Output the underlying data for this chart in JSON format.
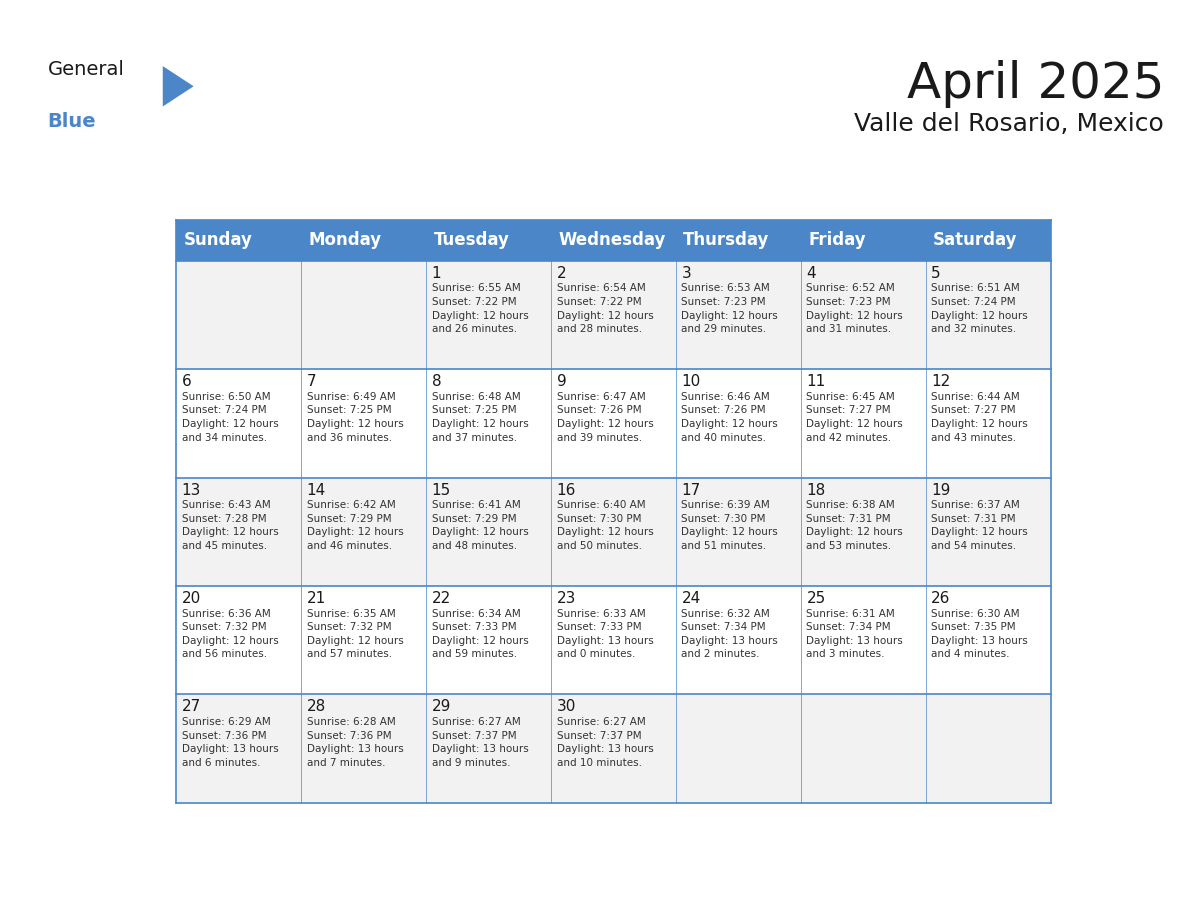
{
  "title": "April 2025",
  "subtitle": "Valle del Rosario, Mexico",
  "header_bg": "#4A86C8",
  "header_text": "#FFFFFF",
  "row_bg_odd": "#F2F2F2",
  "row_bg_even": "#FFFFFF",
  "border_color": "#4A86C8",
  "day_headers": [
    "Sunday",
    "Monday",
    "Tuesday",
    "Wednesday",
    "Thursday",
    "Friday",
    "Saturday"
  ],
  "weeks": [
    [
      {
        "day": "",
        "info": ""
      },
      {
        "day": "",
        "info": ""
      },
      {
        "day": "1",
        "info": "Sunrise: 6:55 AM\nSunset: 7:22 PM\nDaylight: 12 hours\nand 26 minutes."
      },
      {
        "day": "2",
        "info": "Sunrise: 6:54 AM\nSunset: 7:22 PM\nDaylight: 12 hours\nand 28 minutes."
      },
      {
        "day": "3",
        "info": "Sunrise: 6:53 AM\nSunset: 7:23 PM\nDaylight: 12 hours\nand 29 minutes."
      },
      {
        "day": "4",
        "info": "Sunrise: 6:52 AM\nSunset: 7:23 PM\nDaylight: 12 hours\nand 31 minutes."
      },
      {
        "day": "5",
        "info": "Sunrise: 6:51 AM\nSunset: 7:24 PM\nDaylight: 12 hours\nand 32 minutes."
      }
    ],
    [
      {
        "day": "6",
        "info": "Sunrise: 6:50 AM\nSunset: 7:24 PM\nDaylight: 12 hours\nand 34 minutes."
      },
      {
        "day": "7",
        "info": "Sunrise: 6:49 AM\nSunset: 7:25 PM\nDaylight: 12 hours\nand 36 minutes."
      },
      {
        "day": "8",
        "info": "Sunrise: 6:48 AM\nSunset: 7:25 PM\nDaylight: 12 hours\nand 37 minutes."
      },
      {
        "day": "9",
        "info": "Sunrise: 6:47 AM\nSunset: 7:26 PM\nDaylight: 12 hours\nand 39 minutes."
      },
      {
        "day": "10",
        "info": "Sunrise: 6:46 AM\nSunset: 7:26 PM\nDaylight: 12 hours\nand 40 minutes."
      },
      {
        "day": "11",
        "info": "Sunrise: 6:45 AM\nSunset: 7:27 PM\nDaylight: 12 hours\nand 42 minutes."
      },
      {
        "day": "12",
        "info": "Sunrise: 6:44 AM\nSunset: 7:27 PM\nDaylight: 12 hours\nand 43 minutes."
      }
    ],
    [
      {
        "day": "13",
        "info": "Sunrise: 6:43 AM\nSunset: 7:28 PM\nDaylight: 12 hours\nand 45 minutes."
      },
      {
        "day": "14",
        "info": "Sunrise: 6:42 AM\nSunset: 7:29 PM\nDaylight: 12 hours\nand 46 minutes."
      },
      {
        "day": "15",
        "info": "Sunrise: 6:41 AM\nSunset: 7:29 PM\nDaylight: 12 hours\nand 48 minutes."
      },
      {
        "day": "16",
        "info": "Sunrise: 6:40 AM\nSunset: 7:30 PM\nDaylight: 12 hours\nand 50 minutes."
      },
      {
        "day": "17",
        "info": "Sunrise: 6:39 AM\nSunset: 7:30 PM\nDaylight: 12 hours\nand 51 minutes."
      },
      {
        "day": "18",
        "info": "Sunrise: 6:38 AM\nSunset: 7:31 PM\nDaylight: 12 hours\nand 53 minutes."
      },
      {
        "day": "19",
        "info": "Sunrise: 6:37 AM\nSunset: 7:31 PM\nDaylight: 12 hours\nand 54 minutes."
      }
    ],
    [
      {
        "day": "20",
        "info": "Sunrise: 6:36 AM\nSunset: 7:32 PM\nDaylight: 12 hours\nand 56 minutes."
      },
      {
        "day": "21",
        "info": "Sunrise: 6:35 AM\nSunset: 7:32 PM\nDaylight: 12 hours\nand 57 minutes."
      },
      {
        "day": "22",
        "info": "Sunrise: 6:34 AM\nSunset: 7:33 PM\nDaylight: 12 hours\nand 59 minutes."
      },
      {
        "day": "23",
        "info": "Sunrise: 6:33 AM\nSunset: 7:33 PM\nDaylight: 13 hours\nand 0 minutes."
      },
      {
        "day": "24",
        "info": "Sunrise: 6:32 AM\nSunset: 7:34 PM\nDaylight: 13 hours\nand 2 minutes."
      },
      {
        "day": "25",
        "info": "Sunrise: 6:31 AM\nSunset: 7:34 PM\nDaylight: 13 hours\nand 3 minutes."
      },
      {
        "day": "26",
        "info": "Sunrise: 6:30 AM\nSunset: 7:35 PM\nDaylight: 13 hours\nand 4 minutes."
      }
    ],
    [
      {
        "day": "27",
        "info": "Sunrise: 6:29 AM\nSunset: 7:36 PM\nDaylight: 13 hours\nand 6 minutes."
      },
      {
        "day": "28",
        "info": "Sunrise: 6:28 AM\nSunset: 7:36 PM\nDaylight: 13 hours\nand 7 minutes."
      },
      {
        "day": "29",
        "info": "Sunrise: 6:27 AM\nSunset: 7:37 PM\nDaylight: 13 hours\nand 9 minutes."
      },
      {
        "day": "30",
        "info": "Sunrise: 6:27 AM\nSunset: 7:37 PM\nDaylight: 13 hours\nand 10 minutes."
      },
      {
        "day": "",
        "info": ""
      },
      {
        "day": "",
        "info": ""
      },
      {
        "day": "",
        "info": ""
      }
    ]
  ],
  "logo_triangle_color": "#4A86C8",
  "title_fontsize": 36,
  "subtitle_fontsize": 18,
  "header_fontsize": 12,
  "day_num_fontsize": 11,
  "info_fontsize": 7.5
}
